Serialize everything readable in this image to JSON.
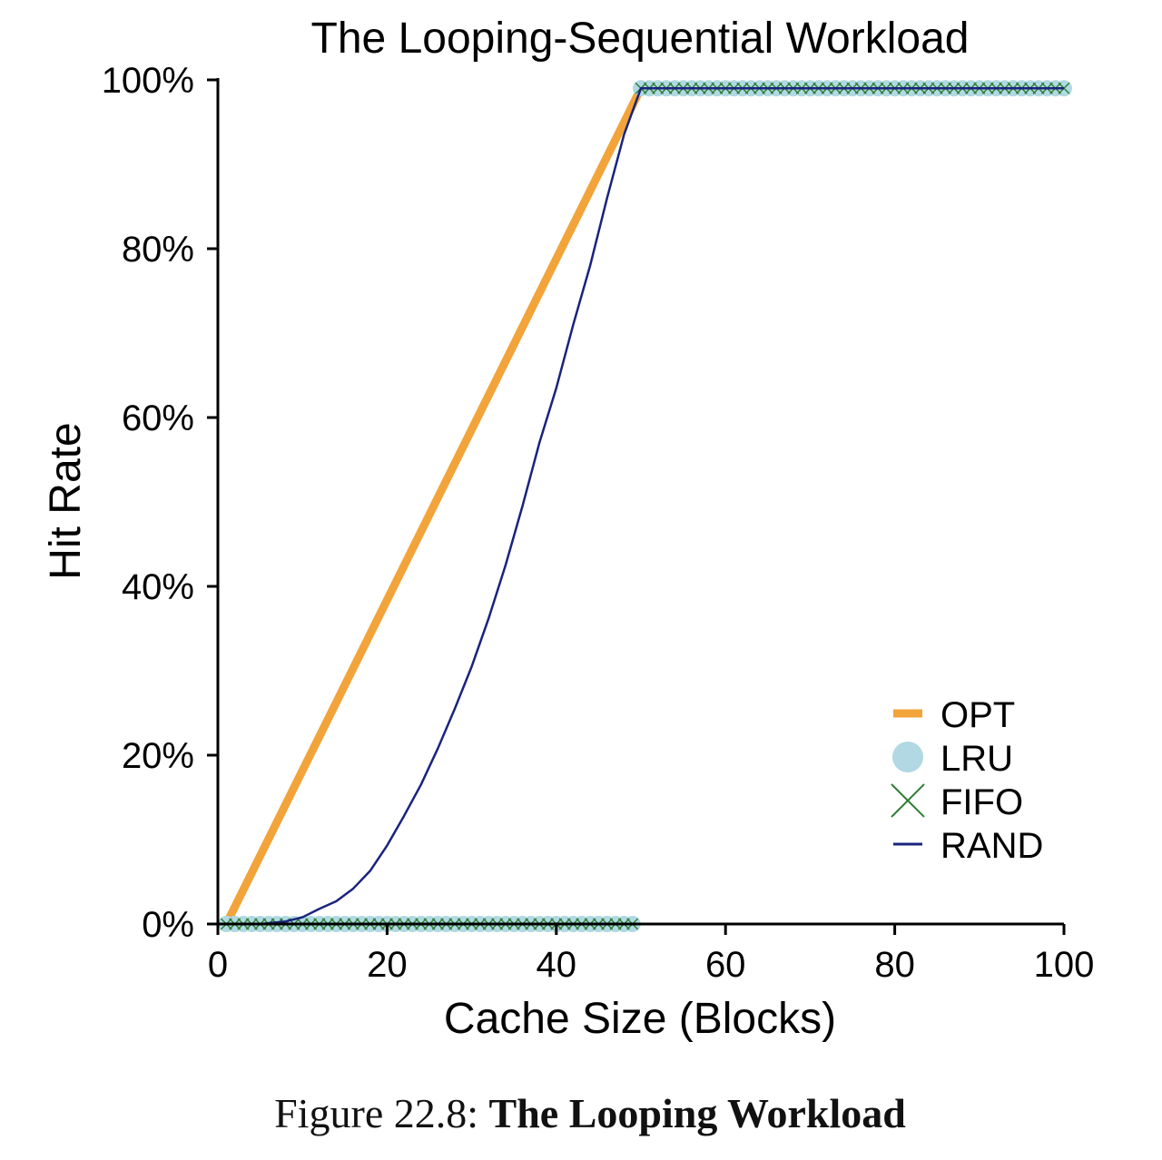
{
  "chart_data": {
    "type": "line",
    "title": "The Looping-Sequential Workload",
    "xlabel": "Cache Size (Blocks)",
    "ylabel": "Hit Rate",
    "xlim": [
      0,
      100
    ],
    "ylim": [
      0,
      100
    ],
    "x_ticks": [
      "0",
      "20",
      "40",
      "60",
      "80",
      "100"
    ],
    "x_tick_values": [
      0,
      20,
      40,
      60,
      80,
      100
    ],
    "y_ticks": [
      "0%",
      "20%",
      "40%",
      "60%",
      "80%",
      "100%"
    ],
    "y_tick_values": [
      0,
      20,
      40,
      60,
      80,
      100
    ],
    "legend_position": "bottom-right",
    "series": [
      {
        "name": "OPT",
        "color": "#f2a43a",
        "style": "thick-line",
        "x": [
          1,
          50,
          100
        ],
        "y": [
          0,
          99,
          99
        ]
      },
      {
        "name": "LRU",
        "color": "#b1d8e3",
        "style": "circle-markers",
        "x_range": [
          1,
          100
        ],
        "segments": [
          {
            "x": [
              1,
              49
            ],
            "y": 0
          },
          {
            "x": [
              50,
              100
            ],
            "y": 99
          }
        ]
      },
      {
        "name": "FIFO",
        "color": "#2e7d32",
        "style": "x-markers",
        "x_range": [
          1,
          100
        ],
        "segments": [
          {
            "x": [
              1,
              49
            ],
            "y": 0
          },
          {
            "x": [
              50,
              100
            ],
            "y": 99
          }
        ]
      },
      {
        "name": "RAND",
        "color": "#1a237e",
        "style": "thin-line",
        "x": [
          1,
          5,
          8,
          10,
          12,
          14,
          16,
          18,
          20,
          22,
          24,
          26,
          28,
          30,
          32,
          34,
          36,
          38,
          40,
          42,
          44,
          46,
          48,
          50,
          100
        ],
        "y": [
          0,
          0,
          0.3,
          0.8,
          1.8,
          2.7,
          4.2,
          6.3,
          9.3,
          12.8,
          16.5,
          20.8,
          25.5,
          30.5,
          36.2,
          42.5,
          49.5,
          57.0,
          63.5,
          71.0,
          78.0,
          86.0,
          93.5,
          99,
          99
        ]
      }
    ]
  },
  "caption": {
    "prefix": "Figure 22.8:",
    "title": "The Looping Workload"
  }
}
